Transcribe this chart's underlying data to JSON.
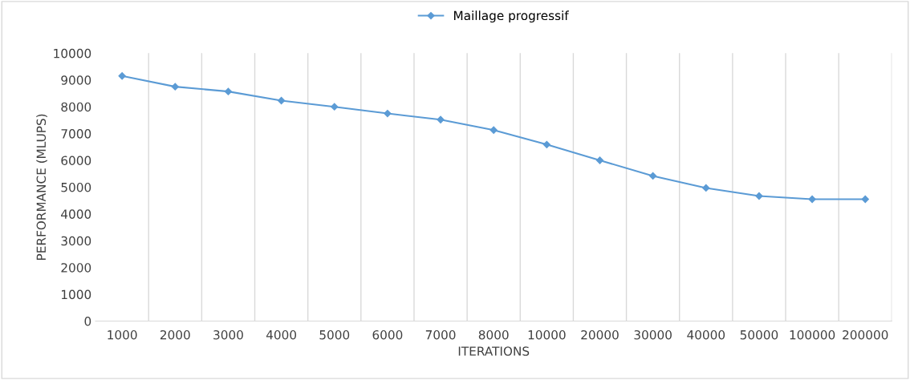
{
  "chart_data": {
    "type": "line",
    "xlabel": "ITERATIONS",
    "ylabel": "PERFORMANCE (MLUPS)",
    "categories": [
      "1000",
      "2000",
      "3000",
      "4000",
      "5000",
      "6000",
      "7000",
      "8000",
      "10000",
      "20000",
      "30000",
      "40000",
      "50000",
      "100000",
      "200000"
    ],
    "series": [
      {
        "name": "Maillage progressif",
        "color": "#5b9bd5",
        "values": [
          9150,
          8750,
          8570,
          8230,
          8000,
          7750,
          7520,
          7130,
          6590,
          6000,
          5420,
          4970,
          4670,
          4550,
          4550
        ]
      }
    ],
    "ylim": [
      0,
      10000
    ],
    "yticks": [
      0,
      1000,
      2000,
      3000,
      4000,
      5000,
      6000,
      7000,
      8000,
      9000,
      10000
    ],
    "grid": "x",
    "legend": "top",
    "marker": "diamond",
    "line_style": "solid"
  }
}
